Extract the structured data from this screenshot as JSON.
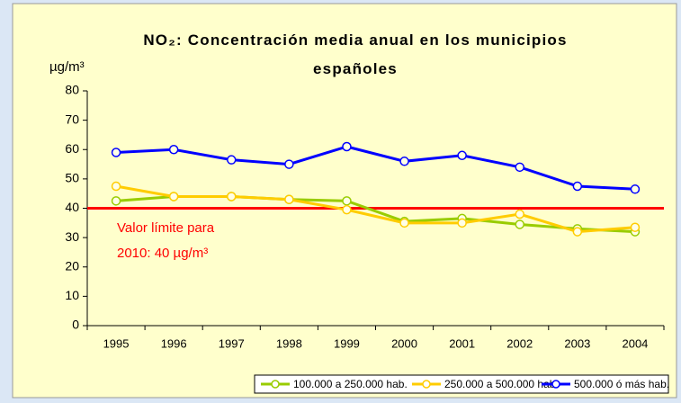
{
  "chart_data": {
    "type": "line",
    "title": "NO₂: Concentración media anual en los municipios españoles",
    "y_axis_label": "µg/m³",
    "annotation": [
      "Valor límite para",
      "2010: 40  µg/m³"
    ],
    "reference_line": {
      "value": 40,
      "color": "#ff0000"
    },
    "categories": [
      "1995",
      "1996",
      "1997",
      "1998",
      "1999",
      "2000",
      "2001",
      "2002",
      "2003",
      "2004"
    ],
    "series": [
      {
        "name": "100.000 a 250.000 hab.",
        "color": "#99cc00",
        "values": [
          42.5,
          44,
          44,
          43,
          42.5,
          35.5,
          36.5,
          34.5,
          33,
          32
        ]
      },
      {
        "name": "250.000 a 500.000 hab.",
        "color": "#ffcc00",
        "values": [
          47.5,
          44,
          44,
          43,
          39.5,
          35,
          35,
          38,
          32,
          33.5
        ]
      },
      {
        "name": "500.000 ó más hab.",
        "color": "#0000ff",
        "values": [
          59,
          60,
          56.5,
          55,
          61,
          56,
          58,
          54,
          47.5,
          46.5
        ]
      }
    ],
    "ylim": [
      0,
      80
    ],
    "yticks": [
      0,
      10,
      20,
      30,
      40,
      50,
      60,
      70,
      80
    ],
    "grid": false,
    "legend": "bottom"
  }
}
